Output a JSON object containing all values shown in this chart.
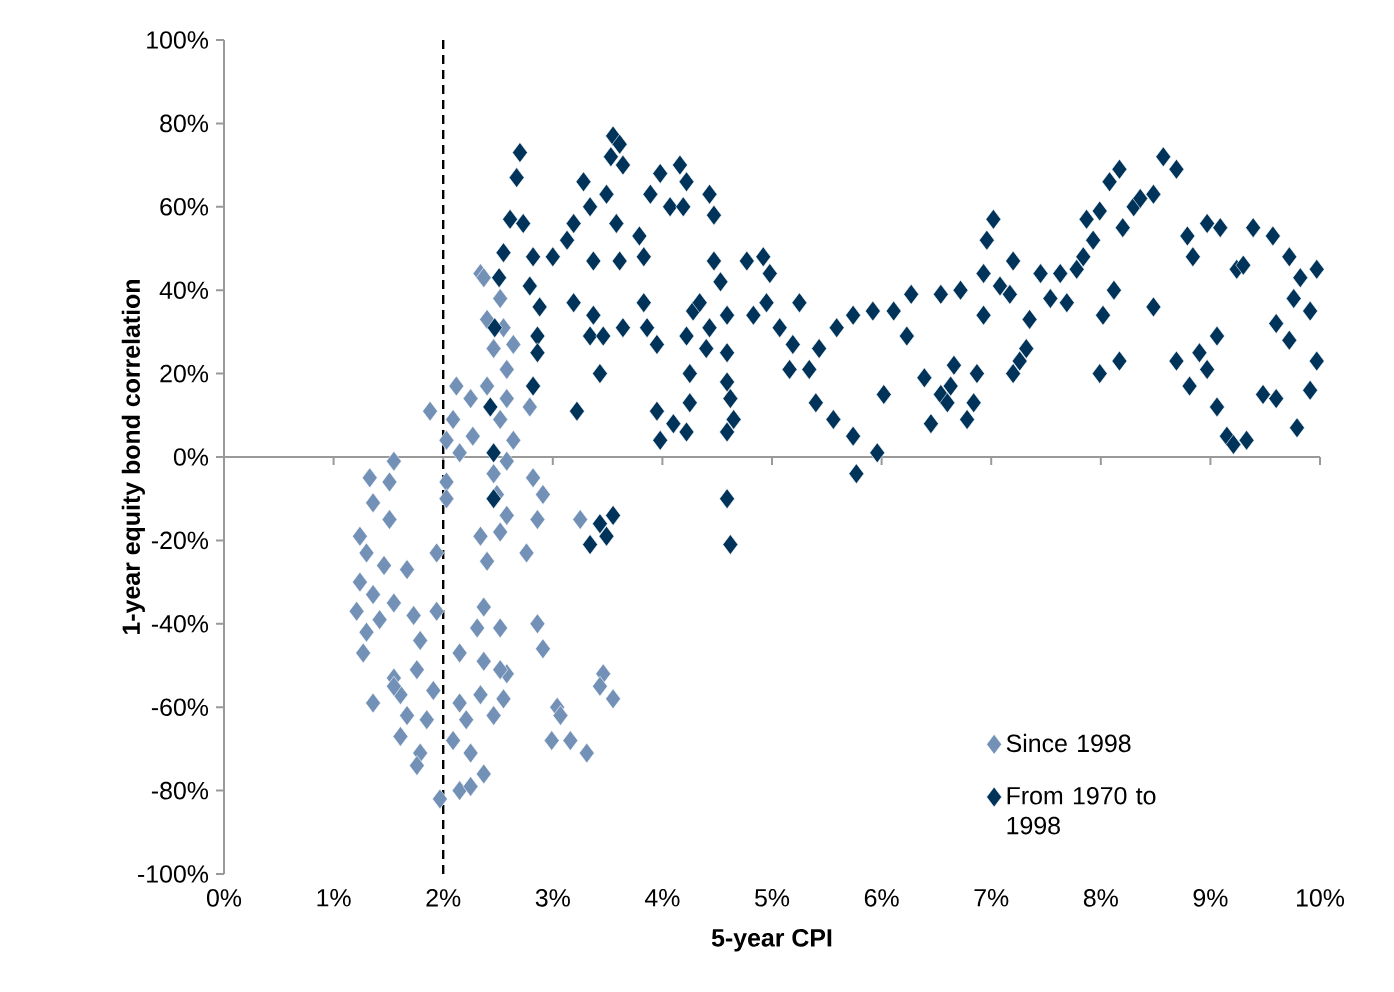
{
  "chart_data": {
    "type": "scatter",
    "xlabel": "5-year CPI",
    "ylabel": "1-year equity bond correlation",
    "xlim": [
      0,
      10
    ],
    "ylim": [
      -100,
      100
    ],
    "xticks": [
      {
        "value": 0,
        "label": "0%"
      },
      {
        "value": 1,
        "label": "1%"
      },
      {
        "value": 2,
        "label": "2%"
      },
      {
        "value": 3,
        "label": "3%"
      },
      {
        "value": 4,
        "label": "4%"
      },
      {
        "value": 5,
        "label": "5%"
      },
      {
        "value": 6,
        "label": "6%"
      },
      {
        "value": 7,
        "label": "7%"
      },
      {
        "value": 8,
        "label": "8%"
      },
      {
        "value": 9,
        "label": "9%"
      },
      {
        "value": 10,
        "label": "10%"
      }
    ],
    "yticks": [
      {
        "value": -100,
        "label": "-100%"
      },
      {
        "value": -80,
        "label": "-80%"
      },
      {
        "value": -60,
        "label": "-60%"
      },
      {
        "value": -40,
        "label": "-40%"
      },
      {
        "value": -20,
        "label": "-20%"
      },
      {
        "value": 0,
        "label": "0%"
      },
      {
        "value": 20,
        "label": "20%"
      },
      {
        "value": 40,
        "label": "40%"
      },
      {
        "value": 60,
        "label": "60%"
      },
      {
        "value": 80,
        "label": "80%"
      },
      {
        "value": 100,
        "label": "100%"
      }
    ],
    "marker": "diamond",
    "legend": "bottom right",
    "ref_lines": [
      {
        "axis": "x",
        "value": 2,
        "color": "#000000",
        "line_style": "dashed"
      }
    ],
    "series": [
      {
        "name": "Since 1998",
        "color": "#7391b6",
        "x": [
          2.34,
          2.37,
          2.52,
          2.4,
          2.55,
          2.46,
          2.64,
          2.58,
          2.12,
          2.25,
          2.4,
          1.88,
          2.09,
          2.52,
          2.58,
          2.79,
          2.03,
          2.27,
          2.64,
          2.15,
          2.58,
          1.55,
          1.33,
          1.51,
          2.03,
          2.46,
          2.82,
          1.36,
          1.51,
          2.03,
          2.49,
          2.91,
          3.25,
          2.58,
          2.86,
          1.24,
          1.3,
          1.46,
          1.67,
          1.94,
          2.34,
          2.52,
          2.4,
          2.76,
          1.24,
          1.36,
          1.55,
          1.21,
          1.42,
          1.3,
          1.73,
          1.94,
          2.37,
          2.31,
          2.52,
          2.86,
          2.91,
          1.79,
          1.27,
          2.15,
          2.37,
          2.58,
          1.55,
          1.76,
          3.46,
          3.55,
          3.43,
          1.36,
          1.61,
          1.91,
          1.67,
          1.85,
          2.15,
          2.34,
          2.55,
          2.21,
          2.46,
          3.04,
          3.07,
          1.61,
          1.79,
          1.76,
          2.09,
          2.25,
          2.99,
          3.16,
          3.31,
          1.97,
          2.15,
          2.37,
          2.25,
          2.52,
          1.55
        ],
        "values": [
          44,
          43,
          38,
          33,
          31,
          26,
          27,
          21,
          17,
          14,
          17,
          11,
          9,
          9,
          14,
          12,
          4,
          5,
          4,
          1,
          -1,
          -1,
          -5,
          -6,
          -6,
          -4,
          -5,
          -11,
          -15,
          -10,
          -9,
          -9,
          -15,
          -14,
          -15,
          -19,
          -23,
          -26,
          -27,
          -23,
          -19,
          -18,
          -25,
          -23,
          -30,
          -33,
          -35,
          -37,
          -39,
          -42,
          -38,
          -37,
          -36,
          -41,
          -41,
          -40,
          -46,
          -44,
          -47,
          -47,
          -49,
          -52,
          -53,
          -51,
          -52,
          -58,
          -55,
          -59,
          -57,
          -56,
          -62,
          -63,
          -59,
          -57,
          -58,
          -63,
          -62,
          -60,
          -62,
          -67,
          -71,
          -74,
          -68,
          -71,
          -68,
          -68,
          -71,
          -82,
          -80,
          -76,
          -79,
          -51,
          -55
        ]
      },
      {
        "name": "From 1970 to 1998",
        "color": "#003359",
        "x": [
          2.7,
          2.67,
          2.61,
          2.73,
          2.55,
          2.51,
          2.82,
          3.0,
          2.79,
          2.88,
          2.86,
          2.86,
          2.82,
          2.47,
          2.43,
          2.46,
          2.46,
          3.19,
          3.22,
          3.37,
          3.34,
          3.46,
          3.43,
          3.64,
          3.83,
          3.86,
          3.95,
          3.13,
          3.19,
          3.28,
          3.34,
          3.37,
          3.55,
          3.53,
          3.61,
          3.64,
          3.49,
          3.58,
          3.61,
          3.79,
          3.83,
          3.89,
          3.98,
          4.16,
          4.22,
          4.07,
          4.19,
          4.43,
          4.47,
          3.95,
          3.98,
          4.1,
          4.22,
          4.25,
          4.25,
          4.22,
          4.28,
          4.34,
          4.43,
          4.4,
          4.47,
          4.53,
          4.59,
          4.59,
          4.59,
          4.62,
          4.65,
          4.59,
          4.59,
          4.62,
          4.77,
          4.92,
          4.98,
          4.83,
          4.95,
          5.25,
          5.07,
          5.19,
          5.16,
          5.34,
          5.43,
          5.4,
          5.59,
          5.56,
          5.74,
          5.74,
          5.92,
          5.77,
          5.96,
          6.02,
          6.11,
          6.23,
          6.27,
          6.54,
          6.72,
          6.93,
          6.39,
          6.45,
          6.54,
          6.63,
          6.66,
          6.6,
          6.78,
          6.84,
          6.87,
          6.93,
          6.96,
          7.02,
          7.08,
          7.17,
          7.2,
          7.2,
          7.26,
          7.32,
          7.35,
          7.45,
          7.54,
          7.63,
          7.69,
          7.78,
          7.84,
          7.87,
          7.93,
          7.99,
          8.02,
          7.99,
          8.12,
          8.08,
          8.17,
          8.17,
          8.2,
          8.3,
          8.36,
          8.48,
          8.48,
          8.57,
          8.69,
          8.69,
          8.79,
          8.84,
          8.81,
          8.9,
          8.97,
          9.09,
          9.06,
          8.97,
          9.06,
          9.15,
          9.21,
          9.33,
          9.24,
          9.3,
          9.39,
          9.48,
          9.57,
          9.6,
          9.72,
          9.79,
          9.82,
          9.76,
          9.6,
          9.72,
          9.91,
          9.91,
          9.97,
          9.97,
          3.34,
          3.49,
          3.55,
          3.43
        ],
        "values": [
          73,
          67,
          57,
          56,
          49,
          43,
          48,
          48,
          41,
          36,
          29,
          25,
          17,
          31,
          12,
          1,
          -10,
          37,
          11,
          34,
          29,
          29,
          20,
          31,
          37,
          31,
          27,
          52,
          56,
          66,
          60,
          47,
          77,
          72,
          75,
          70,
          63,
          56,
          47,
          53,
          48,
          63,
          68,
          70,
          66,
          60,
          60,
          63,
          58,
          11,
          4,
          8,
          6,
          13,
          20,
          29,
          35,
          37,
          31,
          26,
          47,
          42,
          34,
          25,
          18,
          14,
          9,
          6,
          -10,
          -21,
          47,
          48,
          44,
          34,
          37,
          37,
          31,
          27,
          21,
          21,
          26,
          13,
          31,
          9,
          5,
          34,
          35,
          -4,
          1,
          15,
          35,
          29,
          39,
          39,
          40,
          34,
          19,
          8,
          15,
          17,
          22,
          13,
          9,
          13,
          20,
          44,
          52,
          57,
          41,
          39,
          47,
          20,
          23,
          26,
          33,
          44,
          38,
          44,
          37,
          45,
          48,
          57,
          52,
          59,
          34,
          20,
          40,
          66,
          69,
          23,
          55,
          60,
          62,
          63,
          36,
          72,
          69,
          23,
          53,
          48,
          17,
          25,
          56,
          55,
          29,
          21,
          12,
          5,
          3,
          4,
          45,
          46,
          55,
          15,
          53,
          14,
          48,
          7,
          43,
          38,
          32,
          28,
          35,
          16,
          45,
          23,
          -21,
          -19,
          -14,
          -16
        ]
      }
    ]
  }
}
